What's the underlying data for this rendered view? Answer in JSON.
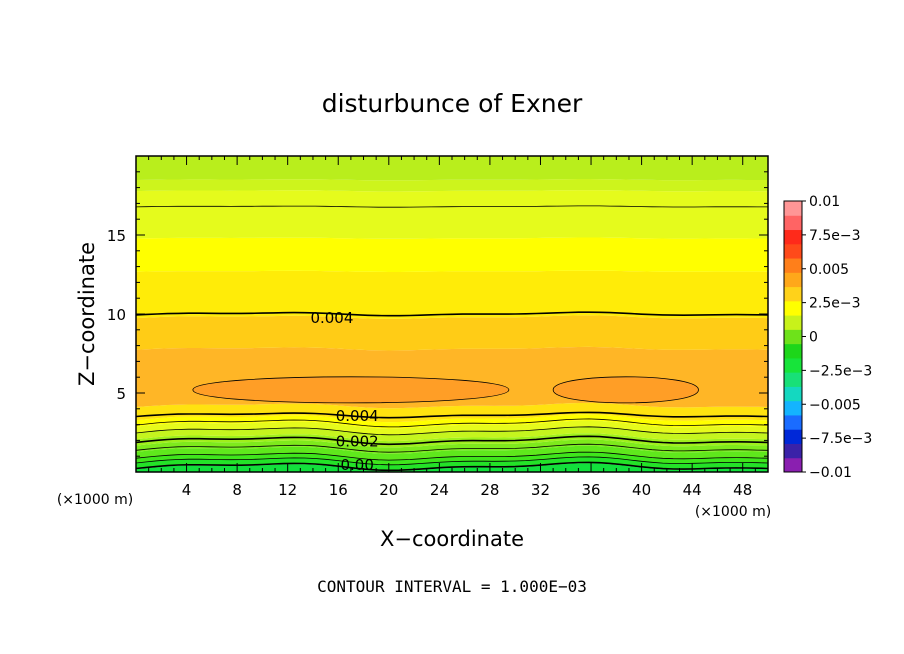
{
  "chart_data": {
    "type": "contour",
    "title": "disturbunce of Exner",
    "xlabel": "X−coordinate",
    "ylabel": "Z−coordinate",
    "x_unit_label": "(×1000 m)",
    "x_unit_label_right": "(×1000 m)",
    "footer": "CONTOUR INTERVAL = 1.000E−03",
    "xlim": [
      0,
      50
    ],
    "ylim": [
      0,
      20
    ],
    "x_ticks": [
      "4",
      "8",
      "12",
      "16",
      "20",
      "24",
      "28",
      "32",
      "36",
      "40",
      "44",
      "48"
    ],
    "x_tick_values": [
      4,
      8,
      12,
      16,
      20,
      24,
      28,
      32,
      36,
      40,
      44,
      48
    ],
    "y_ticks": [
      "5",
      "10",
      "15"
    ],
    "y_tick_values": [
      5,
      10,
      15
    ],
    "contour_labels": [
      {
        "text": "0.004",
        "x": 15.5,
        "y": 9.8
      },
      {
        "text": "0.004",
        "x": 17.5,
        "y": 3.6
      },
      {
        "text": "0.002",
        "x": 17.5,
        "y": 2.0
      },
      {
        "text": "0.00",
        "x": 17.5,
        "y": 0.5
      }
    ],
    "colorbar": {
      "labels": [
        "0.01",
        "7.5e−3",
        "0.005",
        "2.5e−3",
        "0",
        "−2.5e−3",
        "−0.005",
        "−7.5e−3",
        "−0.01"
      ],
      "values": [
        0.01,
        0.0075,
        0.005,
        0.0025,
        0,
        -0.0025,
        -0.005,
        -0.0075,
        -0.01
      ],
      "range": [
        -0.01,
        0.01
      ],
      "colors": [
        "#8a1fb0",
        "#3a22a8",
        "#0028d8",
        "#1a6cff",
        "#14b4ff",
        "#14d8c0",
        "#18e078",
        "#17e43a",
        "#1dd61a",
        "#6ee21a",
        "#c8f21a",
        "#ffff00",
        "#ffd21a",
        "#ffa81a",
        "#ff7f1a",
        "#ff4a1a",
        "#ff2a1a",
        "#ff6464",
        "#ff9696"
      ]
    },
    "levels": {
      "bands_z_km": [
        0,
        0.3,
        0.7,
        1.0,
        1.4,
        1.8,
        2.2,
        2.6,
        3.0,
        3.4,
        4.2,
        7.8,
        9.8,
        12.7,
        14.8,
        17.8,
        18.5,
        20
      ],
      "band_colors": [
        "#12e03c",
        "#24e228",
        "#3fe61c",
        "#5fe81c",
        "#7eea1c",
        "#9ff01c",
        "#c5f51e",
        "#e6fb1c",
        "#ffff00",
        "#ffe210",
        "#ffb626",
        "#ffcc16",
        "#ffec08",
        "#ffff00",
        "#e5fb1c",
        "#cdf41c",
        "#b9ee1c"
      ]
    }
  }
}
